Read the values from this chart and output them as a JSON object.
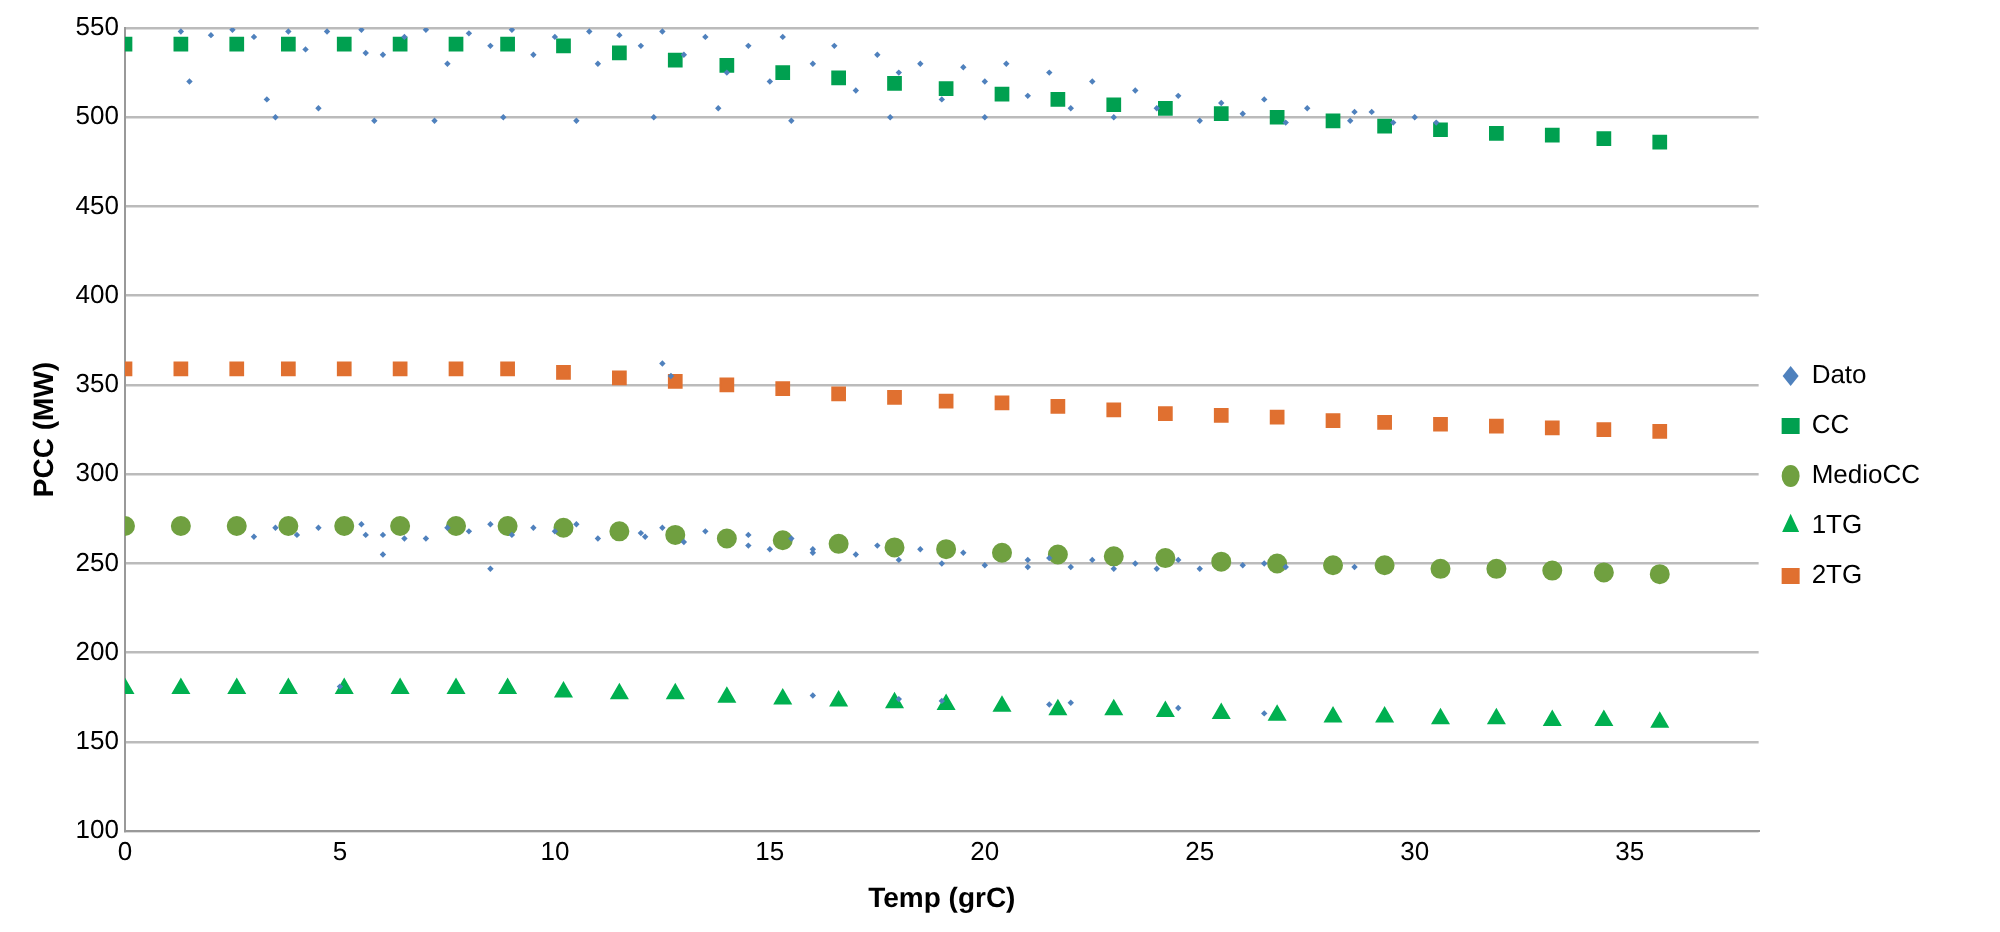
{
  "chart_data": {
    "type": "scatter",
    "xlabel": "Temp (grC)",
    "ylabel": "PCC (MW)",
    "xlim": [
      0,
      38
    ],
    "xticks": [
      0,
      5,
      10,
      15,
      20,
      25,
      30,
      35
    ],
    "ylim": [
      100,
      550
    ],
    "yticks": [
      100,
      150,
      200,
      250,
      300,
      350,
      400,
      450,
      500,
      550
    ],
    "grid": "y",
    "legend": "right",
    "series": [
      {
        "name": "Dato",
        "type": "scatter",
        "marker": "diamond",
        "color": "#4f81bd",
        "x": [
          1.3,
          1.5,
          2.0,
          2.5,
          3.0,
          3.3,
          3.5,
          3.8,
          4.2,
          4.5,
          4.7,
          5.6,
          5.5,
          5.8,
          6.0,
          6.5,
          7.0,
          7.2,
          7.5,
          8.0,
          8.5,
          8.8,
          9.0,
          9.5,
          10.0,
          10.5,
          10.8,
          11.0,
          11.5,
          12.0,
          12.3,
          12.5,
          13.0,
          13.5,
          13.8,
          14.0,
          14.5,
          15.0,
          15.3,
          15.5,
          16.0,
          16.5,
          17.0,
          17.5,
          17.8,
          18.0,
          18.5,
          19.0,
          19.5,
          20.0,
          20.0,
          20.5,
          21.0,
          21.5,
          22.0,
          22.5,
          23.0,
          23.5,
          24.0,
          24.5,
          25.0,
          25.5,
          26.0,
          26.5,
          27.0,
          27.5,
          28.6,
          28.5,
          29.0,
          29.5,
          30.0,
          30.5,
          3.0,
          3.5,
          4.0,
          4.5,
          5.6,
          5.5,
          6.0,
          6.5,
          7.0,
          7.5,
          8.0,
          8.5,
          9.0,
          9.5,
          10.0,
          10.5,
          11.0,
          12.1,
          12.0,
          12.5,
          13.0,
          13.5,
          14.5,
          14.5,
          15.0,
          15.5,
          16.0,
          16.0,
          17.0,
          17.5,
          18.0,
          18.5,
          19.0,
          19.5,
          20.0,
          21.0,
          21.0,
          21.5,
          22.0,
          22.5,
          23.0,
          23.5,
          24.0,
          24.5,
          25.0,
          26.0,
          27.0,
          28.6,
          8.5,
          6.0,
          26.5,
          5.0,
          12.5,
          12.7,
          16.0,
          18.0,
          19.0,
          21.5,
          22.0,
          24.5,
          26.5
        ],
        "values": [
          548,
          520,
          546,
          549,
          545,
          510,
          500,
          548,
          538,
          505,
          548,
          536,
          549,
          498,
          535,
          545,
          549,
          498,
          530,
          547,
          540,
          500,
          549,
          535,
          545,
          498,
          548,
          530,
          546,
          540,
          500,
          548,
          535,
          545,
          505,
          525,
          540,
          520,
          545,
          498,
          530,
          540,
          515,
          535,
          500,
          525,
          530,
          510,
          528,
          500,
          520,
          530,
          512,
          525,
          505,
          520,
          500,
          515,
          505,
          512,
          498,
          508,
          502,
          510,
          497,
          505,
          503,
          498,
          503,
          497,
          500,
          497,
          265,
          270,
          266,
          270,
          266,
          272,
          266,
          264,
          264,
          270,
          268,
          272,
          266,
          270,
          268,
          272,
          264,
          265,
          267,
          270,
          262,
          268,
          260,
          266,
          258,
          264,
          256,
          258,
          255,
          260,
          252,
          258,
          250,
          256,
          249,
          252,
          248,
          253,
          248,
          252,
          247,
          250,
          247,
          252,
          247,
          249,
          248,
          248,
          247,
          255,
          250,
          181,
          362,
          355,
          176,
          174,
          173,
          171,
          172,
          169,
          166
        ]
      },
      {
        "name": "CC",
        "type": "scatter",
        "marker": "square",
        "color": "#00a050",
        "x": [
          0,
          1.3,
          2.6,
          3.8,
          5.1,
          6.4,
          7.7,
          8.9,
          10.2,
          11.5,
          12.8,
          14.0,
          15.3,
          16.6,
          17.9,
          19.1,
          20.4,
          21.7,
          23.0,
          24.2,
          25.5,
          26.8,
          28.1,
          29.3,
          30.6,
          31.9,
          33.2,
          34.4,
          35.7
        ],
        "values": [
          541,
          541,
          541,
          541,
          541,
          541,
          541,
          541,
          540,
          536,
          532,
          529,
          525,
          522,
          519,
          516,
          513,
          510,
          507,
          505,
          502,
          500,
          498,
          495,
          493,
          491,
          490,
          488,
          486
        ]
      },
      {
        "name": "MedioCC",
        "type": "scatter",
        "marker": "circle",
        "color": "#70a040",
        "x": [
          0,
          1.3,
          2.6,
          3.8,
          5.1,
          6.4,
          7.7,
          8.9,
          10.2,
          11.5,
          12.8,
          14.0,
          15.3,
          16.6,
          17.9,
          19.1,
          20.4,
          21.7,
          23.0,
          24.2,
          25.5,
          26.8,
          28.1,
          29.3,
          30.6,
          31.9,
          33.2,
          34.4,
          35.7
        ],
        "values": [
          271,
          271,
          271,
          271,
          271,
          271,
          271,
          271,
          270,
          268,
          266,
          264,
          263,
          261,
          259,
          258,
          256,
          255,
          254,
          253,
          251,
          250,
          249,
          249,
          247,
          247,
          246,
          245,
          244
        ]
      },
      {
        "name": "1TG",
        "type": "scatter",
        "marker": "triangle",
        "color": "#00b050",
        "x": [
          0,
          1.3,
          2.6,
          3.8,
          5.1,
          6.4,
          7.7,
          8.9,
          10.2,
          11.5,
          12.8,
          14.0,
          15.3,
          16.6,
          17.9,
          19.1,
          20.4,
          21.7,
          23.0,
          24.2,
          25.5,
          26.8,
          28.1,
          29.3,
          30.6,
          31.9,
          33.2,
          34.4,
          35.7
        ],
        "values": [
          180,
          180,
          180,
          180,
          180,
          180,
          180,
          180,
          178,
          177,
          177,
          175,
          174,
          173,
          172,
          171,
          170,
          168,
          168,
          167,
          166,
          165,
          164,
          164,
          163,
          163,
          162,
          162,
          161
        ]
      },
      {
        "name": "2TG",
        "type": "scatter",
        "marker": "square",
        "color": "#e07030",
        "x": [
          0,
          1.3,
          2.6,
          3.8,
          5.1,
          6.4,
          7.7,
          8.9,
          10.2,
          11.5,
          12.8,
          14.0,
          15.3,
          16.6,
          17.9,
          19.1,
          20.4,
          21.7,
          23.0,
          24.2,
          25.5,
          26.8,
          28.1,
          29.3,
          30.6,
          31.9,
          33.2,
          34.4,
          35.7
        ],
        "values": [
          359,
          359,
          359,
          359,
          359,
          359,
          359,
          359,
          357,
          354,
          352,
          350,
          348,
          345,
          343,
          341,
          340,
          338,
          336,
          334,
          333,
          332,
          330,
          329,
          328,
          327,
          326,
          325,
          324
        ]
      }
    ]
  }
}
